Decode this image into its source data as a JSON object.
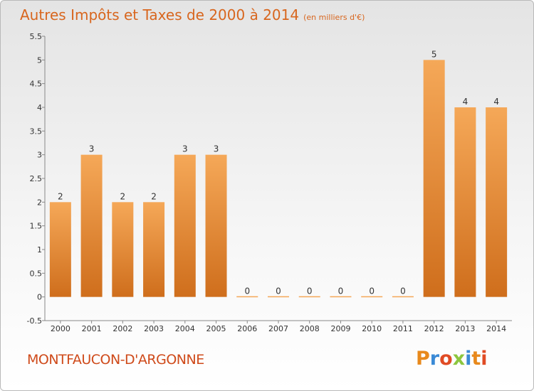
{
  "header": {
    "title": "Autres Impôts et Taxes de 2000 à 2014",
    "unit": "(en milliers d'€)"
  },
  "footer": {
    "place": "MONTFAUCON-D'ARGONNE",
    "logo_letters": [
      "P",
      "r",
      "o",
      "x",
      "i",
      "t",
      "i"
    ],
    "logo_colors": [
      "#e8891c",
      "#3a8ad6",
      "#e04b24",
      "#8cc63f",
      "#3a8ad6",
      "#e8891c",
      "#e04b24"
    ]
  },
  "colors": {
    "bar_top": "#f5a858",
    "bar_bottom": "#cf6e1c",
    "title": "#d8661e"
  },
  "chart_data": {
    "type": "bar",
    "title": "Autres Impôts et Taxes de 2000 à 2014",
    "subtitle": "(en milliers d'€)",
    "categories": [
      "2000",
      "2001",
      "2002",
      "2003",
      "2004",
      "2005",
      "2006",
      "2007",
      "2008",
      "2009",
      "2010",
      "2011",
      "2012",
      "2013",
      "2014"
    ],
    "values": [
      2,
      3,
      2,
      2,
      3,
      3,
      0,
      0,
      0,
      0,
      0,
      0,
      5,
      4,
      4
    ],
    "data_labels": [
      "2",
      "3",
      "2",
      "2",
      "3",
      "3",
      "0",
      "0",
      "0",
      "0",
      "0",
      "0",
      "5",
      "4",
      "4"
    ],
    "yticks": [
      "-0.5",
      "0",
      "0.5",
      "1",
      "1.5",
      "2",
      "2.5",
      "3",
      "3.5",
      "4",
      "4.5",
      "5",
      "5.5"
    ],
    "ylim": [
      -0.5,
      5.5
    ],
    "grid": false,
    "legend": "none"
  }
}
